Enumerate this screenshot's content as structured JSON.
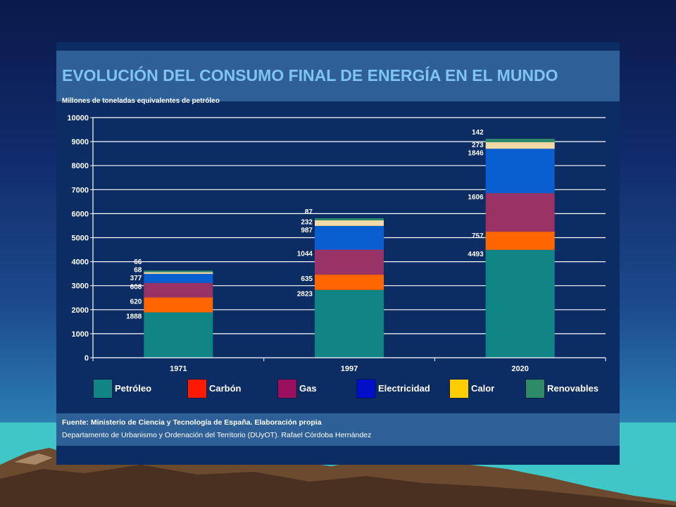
{
  "slide": {
    "title": "EVOLUCIÓN DEL CONSUMO FINAL DE ENERGÍA EN EL MUNDO",
    "unit_label": "Millones de toneladas equivalentes de petróleo",
    "source": "Fuente: Ministerio de Ciencia y Tecnología de España.  Elaboración propia",
    "credit": "Departamento de Urbanismo y Ordenación del Territorio (DUyOT). Rafael Córdoba Hernández"
  },
  "colors": {
    "background_top": "#0a1a4a",
    "panel": "#0c2d63",
    "title_band": "#2f5f97",
    "title_text": "#7fc4f2"
  },
  "legend": [
    {
      "label": "Petróleo",
      "color": "#0f8585"
    },
    {
      "label": "Carbón",
      "color": "#ff1a00"
    },
    {
      "label": "Gas",
      "color": "#99105e"
    },
    {
      "label": "Electricidad",
      "color": "#0010c8"
    },
    {
      "label": "Calor",
      "color": "#ffcc00"
    },
    {
      "label": "Renovables",
      "color": "#2e8b6a"
    }
  ],
  "chart_data": {
    "type": "bar",
    "stacked": true,
    "title": "EVOLUCIÓN DEL CONSUMO FINAL DE ENERGÍA EN EL MUNDO",
    "ylabel": "Millones de toneladas equivalentes de petróleo",
    "xlabel": "",
    "categories": [
      "1971",
      "1997",
      "2020"
    ],
    "ylim": [
      0,
      10000
    ],
    "yticks": [
      0,
      1000,
      2000,
      3000,
      4000,
      5000,
      6000,
      7000,
      8000,
      9000,
      10000
    ],
    "grid": true,
    "legend_position": "bottom",
    "series": [
      {
        "name": "Petróleo",
        "color": "#0f8585",
        "values": [
          1888,
          2823,
          4493
        ]
      },
      {
        "name": "Carbón",
        "color": "#ff6600",
        "values": [
          620,
          635,
          757
        ]
      },
      {
        "name": "Gas",
        "color": "#993366",
        "values": [
          608,
          1044,
          1606
        ]
      },
      {
        "name": "Electricidad",
        "color": "#0a5fd0",
        "values": [
          377,
          987,
          1846
        ]
      },
      {
        "name": "Calor",
        "color": "#f3d9a6",
        "values": [
          68,
          232,
          273
        ]
      },
      {
        "name": "Renovables",
        "color": "#2e8b6a",
        "values": [
          66,
          87,
          142
        ]
      }
    ]
  }
}
